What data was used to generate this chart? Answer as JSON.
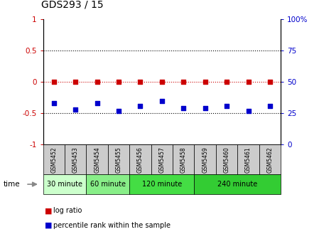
{
  "title": "GDS293 / 15",
  "samples": [
    "GSM5452",
    "GSM5453",
    "GSM5454",
    "GSM5455",
    "GSM5456",
    "GSM5457",
    "GSM5458",
    "GSM5459",
    "GSM5460",
    "GSM5461",
    "GSM5462"
  ],
  "log_ratio": [
    0.0,
    0.0,
    0.0,
    0.0,
    0.0,
    0.0,
    0.0,
    0.0,
    0.0,
    0.0,
    0.0
  ],
  "percentile": [
    33,
    28,
    33,
    27,
    31,
    35,
    29,
    29,
    31,
    27,
    31
  ],
  "ylim_left": [
    -1,
    1
  ],
  "ylim_right": [
    0,
    100
  ],
  "yticks_left": [
    -1,
    -0.5,
    0,
    0.5,
    1
  ],
  "yticks_right": [
    0,
    25,
    50,
    75,
    100
  ],
  "groups": [
    {
      "label": "30 minute",
      "start": 0,
      "end": 2,
      "color": "#ccffcc"
    },
    {
      "label": "60 minute",
      "start": 2,
      "end": 4,
      "color": "#88ee88"
    },
    {
      "label": "120 minute",
      "start": 4,
      "end": 7,
      "color": "#44dd44"
    },
    {
      "label": "240 minute",
      "start": 7,
      "end": 11,
      "color": "#33cc33"
    }
  ],
  "log_ratio_color": "#cc0000",
  "percentile_color": "#0000cc",
  "left_tick_color": "#cc0000",
  "right_tick_color": "#0000cc",
  "zero_line_color": "#cc0000",
  "grid_line_color": "#000000",
  "sample_box_color": "#cccccc",
  "legend_log_ratio_color": "#cc0000",
  "legend_percentile_color": "#0000cc",
  "bg_color": "#ffffff"
}
